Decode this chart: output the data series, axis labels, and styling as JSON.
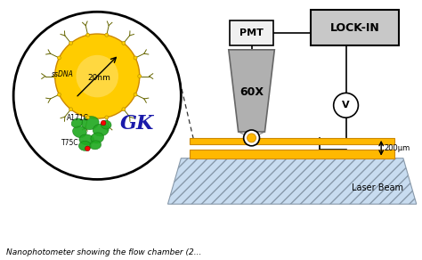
{
  "bg_color": "#ffffff",
  "fig_width": 4.74,
  "fig_height": 2.92,
  "dpi": 100,
  "labels": {
    "lock_in": "LOCK-IN",
    "pmt": "PMT",
    "objective": "60X",
    "voltage": "V",
    "distance": "200μm",
    "laser": "Laser Beam",
    "gk": "GK",
    "ssdna": "ssDNA",
    "size": "20nm",
    "a171c": "A171C",
    "t75c": "T75C"
  },
  "colors": {
    "gold": "#FFB800",
    "gold_dark": "#CC8800",
    "gold_light": "#FFD040",
    "gray_box": "#C8C8C8",
    "gray_obj": "#B0B0B0",
    "green_protein": "#22AA22",
    "red_laser": "#CC0000",
    "black": "#000000",
    "white": "#ffffff",
    "blue_hatch": "#C8DCF0",
    "pmt_white": "#F0F0F0"
  }
}
